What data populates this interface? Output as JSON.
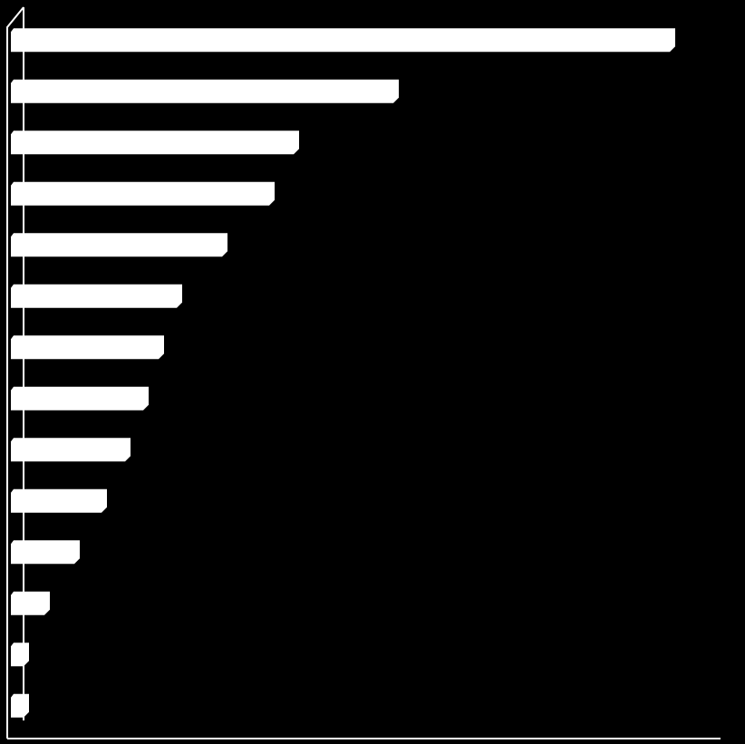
{
  "chart_data": {
    "type": "bar",
    "orientation": "horizontal",
    "categories": [
      null,
      null,
      null,
      null,
      null,
      null,
      null,
      null,
      null,
      null,
      null,
      null,
      null,
      null
    ],
    "values": [
      733,
      428,
      318,
      291,
      239,
      189,
      169,
      152,
      132,
      106,
      76,
      43,
      20,
      20
    ],
    "color": "#ffffff",
    "xlim": [
      0,
      783
    ]
  }
}
